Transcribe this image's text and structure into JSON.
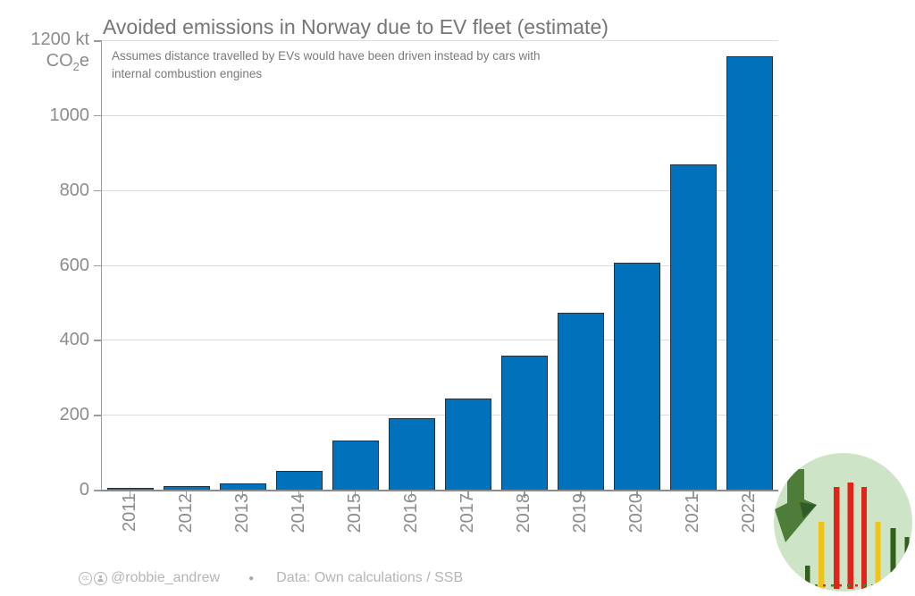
{
  "title": "Avoided emissions in Norway due to EV fleet (estimate)",
  "subtitle": {
    "line1": "Assumes distance travelled by EVs would have been driven instead by cars with",
    "line2": "internal combustion engines"
  },
  "y_axis": {
    "unit_top": "1200 kt",
    "unit_co": "CO",
    "unit_sub": "2",
    "unit_e": "e",
    "tick_values": [
      1000,
      800,
      600,
      400,
      200,
      0
    ]
  },
  "footer": {
    "cc_text": "cc",
    "handle": "@robbie_andrew",
    "separator": "●",
    "source": "Data: Own calculations / SSB"
  },
  "colors": {
    "bar_fill": "#0072bc",
    "bar_edge": "#20313f",
    "gridline": "#dcdcdc",
    "axis": "#9b9b9b",
    "title_gray": "#767676",
    "tick_gray": "#8c8c8c",
    "footer_gray": "#b5b5b5",
    "logo_background": "#cde4c6",
    "logo_arrow": "#4e7c39",
    "logo_arrow_dark": "#2e5b28",
    "logo_red": "#e2231a",
    "logo_yellow": "#f0c319",
    "logo_dark_green": "#33611c"
  },
  "chart_data": {
    "type": "bar",
    "title": "Avoided emissions in Norway due to EV fleet (estimate)",
    "subtitle": "Assumes distance travelled by EVs would have been driven instead by cars with internal combustion engines",
    "xlabel": "",
    "ylabel": "kt CO2e",
    "categories": [
      "2011",
      "2012",
      "2013",
      "2014",
      "2015",
      "2016",
      "2017",
      "2018",
      "2019",
      "2020",
      "2021",
      "2022"
    ],
    "values": [
      4,
      10,
      16,
      50,
      131,
      190,
      243,
      359,
      473,
      605,
      869,
      1156
    ],
    "ylim": [
      0,
      1200
    ],
    "ytick_step": 200,
    "grid": true,
    "legend": false
  }
}
